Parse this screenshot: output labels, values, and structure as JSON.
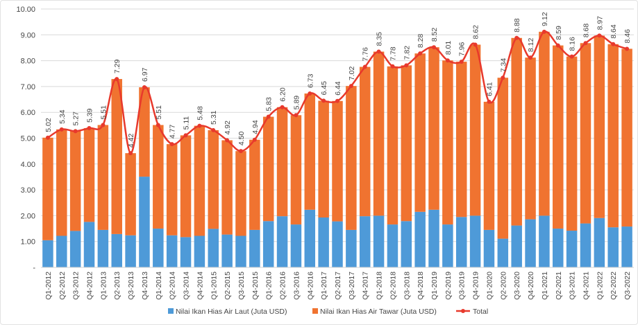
{
  "chart_data": {
    "type": "bar",
    "stacked": true,
    "title": "",
    "xlabel": "",
    "ylabel": "",
    "ylim": [
      0,
      10
    ],
    "yticks": [
      "-",
      "1.00",
      "2.00",
      "3.00",
      "4.00",
      "5.00",
      "6.00",
      "7.00",
      "8.00",
      "9.00",
      "10.00"
    ],
    "grid": true,
    "legend_position": "bottom",
    "categories": [
      "Q1-2012",
      "Q2-2012",
      "Q3-2012",
      "Q4-2012",
      "Q1-2013",
      "Q2-2013",
      "Q3-2013",
      "Q4-2013",
      "Q1-2014",
      "Q2-2014",
      "Q3-2014",
      "Q4-2014",
      "Q1-2015",
      "Q2-2015",
      "Q3-2015",
      "Q4-2015",
      "Q1-2016",
      "Q2-2016",
      "Q3-2016",
      "Q4-2016",
      "Q1-2017",
      "Q2-2017",
      "Q3-2017",
      "Q4-2017",
      "Q1-2018",
      "Q2-2018",
      "Q3-2018",
      "Q4-2018",
      "Q1-2019",
      "Q2-2019",
      "Q3-2019",
      "Q4-2019",
      "Q1-2020",
      "Q2-2020",
      "Q3-2020",
      "Q4-2020",
      "Q1-2021",
      "Q2-2021",
      "Q3-2021",
      "Q4-2021",
      "Q1-2022",
      "Q2-2022",
      "Q3-2022"
    ],
    "series": [
      {
        "name": "Nilai Ikan Hias Air Laut (Juta USD)",
        "kind": "bar",
        "color": "#4e9ad8",
        "values": [
          1.05,
          1.22,
          1.41,
          1.76,
          1.45,
          1.29,
          1.24,
          3.51,
          1.5,
          1.24,
          1.17,
          1.22,
          1.49,
          1.27,
          1.22,
          1.45,
          1.79,
          1.98,
          1.66,
          2.23,
          1.93,
          1.78,
          1.45,
          1.98,
          2.0,
          1.66,
          1.79,
          2.15,
          2.23,
          1.66,
          1.95,
          2.0,
          1.45,
          1.11,
          1.62,
          1.86,
          2.0,
          1.5,
          1.42,
          1.7,
          1.91,
          1.55,
          1.58
        ]
      },
      {
        "name": "Nilai Ikan Hias Air Tawar (Juta USD)",
        "kind": "bar",
        "color": "#f07330",
        "values": [
          3.97,
          4.12,
          3.86,
          3.63,
          4.06,
          6.0,
          3.18,
          3.46,
          4.01,
          3.53,
          3.94,
          4.26,
          3.82,
          3.65,
          3.28,
          3.49,
          4.04,
          4.22,
          4.23,
          4.5,
          4.52,
          4.66,
          5.57,
          5.78,
          6.35,
          6.12,
          6.03,
          6.13,
          6.29,
          6.35,
          6.01,
          6.62,
          4.96,
          6.23,
          7.26,
          6.26,
          7.12,
          7.09,
          6.74,
          6.98,
          7.06,
          7.09,
          6.88
        ]
      },
      {
        "name": "Total",
        "kind": "line",
        "color": "#e8392c",
        "values": [
          5.02,
          5.34,
          5.27,
          5.39,
          5.51,
          7.29,
          4.42,
          6.97,
          5.51,
          4.77,
          5.11,
          5.48,
          5.31,
          4.92,
          4.5,
          4.94,
          5.83,
          6.2,
          5.89,
          6.73,
          6.45,
          6.44,
          7.02,
          7.76,
          8.35,
          7.78,
          7.82,
          8.28,
          8.52,
          8.01,
          7.96,
          8.62,
          6.41,
          7.34,
          8.88,
          8.12,
          9.12,
          8.59,
          8.16,
          8.68,
          8.97,
          8.64,
          8.46
        ],
        "labels": [
          "5.02",
          "5.34",
          "5.27",
          "5.39",
          "5.51",
          "7.29",
          "4.42",
          "6.97",
          "5.51",
          "4.77",
          "5.11",
          "5.48",
          "5.31",
          "4.92",
          "4.50",
          "4.94",
          "5.83",
          "6.20",
          "5.89",
          "6.73",
          "6.45",
          "6.44",
          "7.02",
          "7.76",
          "8.35",
          "7.78",
          "7.82",
          "8.28",
          "8.52",
          "8.01",
          "7.96",
          "8.62",
          "6.41",
          "7.34",
          "8.88",
          "8.12",
          "9.12",
          "8.59",
          "8.16",
          "8.68",
          "8.97",
          "8.64",
          "8.46"
        ]
      }
    ]
  }
}
